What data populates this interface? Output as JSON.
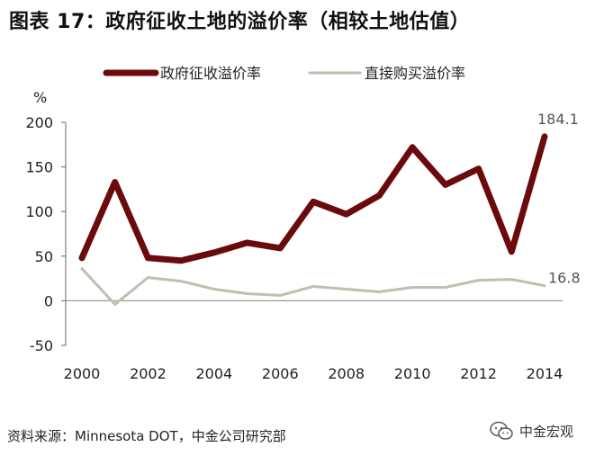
{
  "title": "图表 17：政府征收土地的溢价率（相较土地估值）",
  "source": "资料来源：Minnesota DOT，中金公司研究部",
  "watermark": {
    "text": "中金宏观",
    "icon": "wechat-icon"
  },
  "chart_data": {
    "type": "line",
    "ylabel": "%",
    "ylim": [
      -50,
      200
    ],
    "yticks": [
      -50,
      0,
      50,
      100,
      150,
      200
    ],
    "xticks": [
      2000,
      2002,
      2004,
      2006,
      2008,
      2010,
      2012,
      2014
    ],
    "legend_position": "top",
    "grid": false,
    "x": [
      2000,
      2001,
      2002,
      2003,
      2004,
      2005,
      2006,
      2007,
      2008,
      2009,
      2010,
      2011,
      2012,
      2013,
      2014
    ],
    "series": [
      {
        "name": "政府征收溢价率",
        "color": "#6b0a0d",
        "values": [
          48,
          133,
          48,
          45,
          54,
          65,
          59,
          111,
          97,
          118,
          172,
          130,
          148,
          55,
          184.1
        ],
        "end_label": "184.1"
      },
      {
        "name": "直接购买溢价率",
        "color": "#bfbfaf",
        "values": [
          36,
          -4,
          26,
          22,
          13,
          8,
          6,
          16,
          13,
          10,
          15,
          15,
          23,
          24,
          16.8
        ],
        "end_label": "16.8"
      }
    ]
  }
}
